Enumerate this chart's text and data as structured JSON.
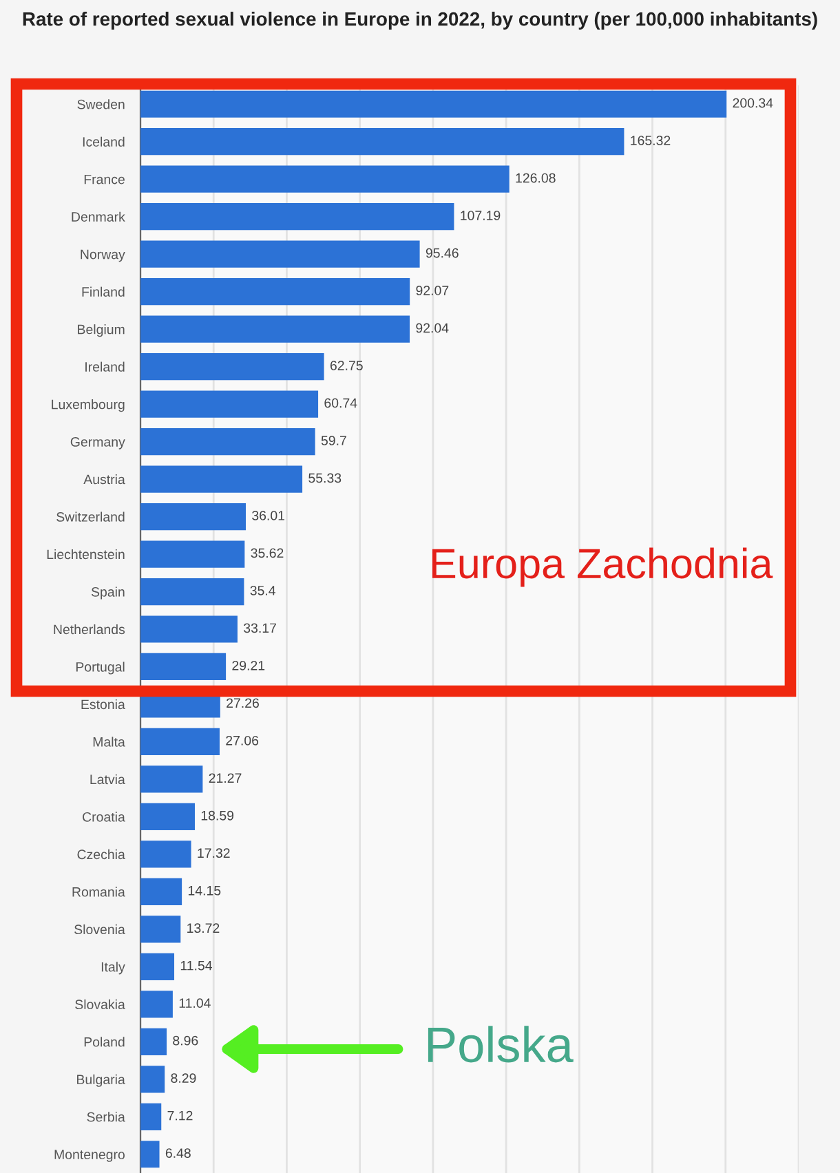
{
  "chart_data": {
    "type": "bar",
    "orientation": "horizontal",
    "title": "Rate of reported sexual violence in Europe in 2022, by country (per 100,000 inhabitants)",
    "categories": [
      "Sweden",
      "Iceland",
      "France",
      "Denmark",
      "Norway",
      "Finland",
      "Belgium",
      "Ireland",
      "Luxembourg",
      "Germany",
      "Austria",
      "Switzerland",
      "Liechtenstein",
      "Spain",
      "Netherlands",
      "Portugal",
      "Estonia",
      "Malta",
      "Latvia",
      "Croatia",
      "Czechia",
      "Romania",
      "Slovenia",
      "Italy",
      "Slovakia",
      "Poland",
      "Bulgaria",
      "Serbia",
      "Montenegro"
    ],
    "values": [
      200.34,
      165.32,
      126.08,
      107.19,
      95.46,
      92.07,
      92.04,
      62.75,
      60.74,
      59.7,
      55.33,
      36.01,
      35.62,
      35.4,
      33.17,
      29.21,
      27.26,
      27.06,
      21.27,
      18.59,
      17.32,
      14.15,
      13.72,
      11.54,
      11.04,
      8.96,
      8.29,
      7.12,
      6.48
    ],
    "color": "#2c72d6",
    "data_labels": true,
    "xlim": [
      0,
      225
    ],
    "xticks": [
      {
        "value": 0,
        "label": null
      },
      {
        "value": 25,
        "label": null
      },
      {
        "value": 50,
        "label": null
      },
      {
        "value": 75,
        "label": null
      },
      {
        "value": 100,
        "label": null
      },
      {
        "value": 125,
        "label": null
      },
      {
        "value": 150,
        "label": null
      },
      {
        "value": 175,
        "label": null
      },
      {
        "value": 200,
        "label": null
      },
      {
        "value": 225,
        "label": null
      }
    ],
    "tick_labels": "y",
    "grid": "x",
    "annotations": [
      "Europa Zachodnia",
      "Polska"
    ]
  }
}
